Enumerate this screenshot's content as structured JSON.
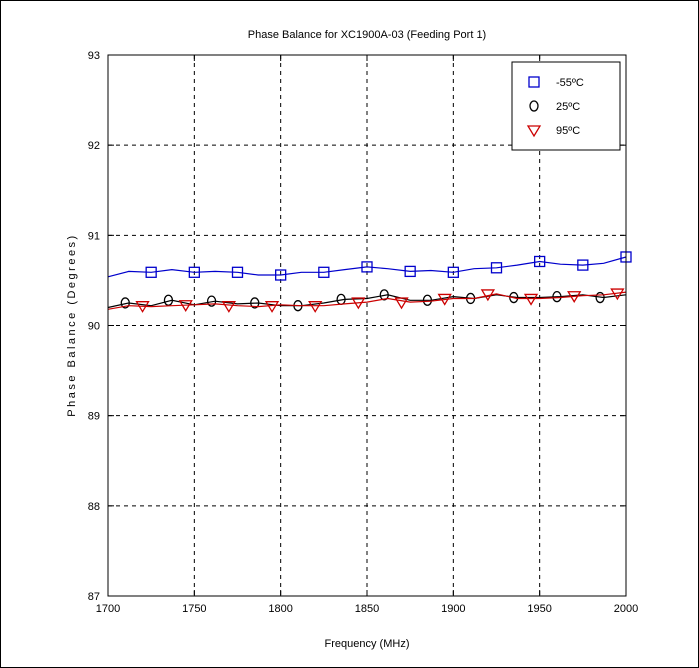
{
  "chart_data": {
    "type": "line",
    "title": "Phase Balance for XC1900A-03 (Feeding Port 1)",
    "xlabel": "Frequency (MHz)",
    "ylabel": "Phase Balance (Degrees)",
    "xlim": [
      1700,
      2000
    ],
    "ylim": [
      87,
      93
    ],
    "xticks": [
      1700,
      1750,
      1800,
      1850,
      1900,
      1950,
      2000
    ],
    "yticks": [
      87,
      88,
      89,
      90,
      91,
      92,
      93
    ],
    "grid": true,
    "legend_position": "top-right",
    "series": [
      {
        "name": "-55ºC",
        "color": "#0000cc",
        "marker": "square",
        "x": [
          1700,
          1712,
          1725,
          1737,
          1750,
          1762,
          1775,
          1787,
          1800,
          1812,
          1825,
          1837,
          1850,
          1862,
          1875,
          1887,
          1900,
          1912,
          1925,
          1937,
          1950,
          1962,
          1975,
          1987,
          2000
        ],
        "y": [
          90.54,
          90.6,
          90.59,
          90.62,
          90.59,
          90.6,
          90.59,
          90.56,
          90.56,
          90.59,
          90.59,
          90.62,
          90.65,
          90.63,
          90.6,
          90.61,
          90.59,
          90.63,
          90.64,
          90.67,
          90.71,
          90.68,
          90.67,
          90.69,
          90.76
        ],
        "marker_x": [
          1725,
          1750,
          1775,
          1800,
          1825,
          1850,
          1875,
          1900,
          1925,
          1950,
          1975,
          2000
        ],
        "marker_y": [
          90.59,
          90.59,
          90.59,
          90.56,
          90.59,
          90.65,
          90.6,
          90.59,
          90.64,
          90.71,
          90.67,
          90.76
        ]
      },
      {
        "name": "25ºC",
        "color": "#000000",
        "marker": "circle",
        "x": [
          1700,
          1712,
          1725,
          1737,
          1750,
          1762,
          1775,
          1787,
          1800,
          1812,
          1825,
          1837,
          1850,
          1862,
          1875,
          1887,
          1900,
          1912,
          1925,
          1937,
          1950,
          1962,
          1975,
          1987,
          2000
        ],
        "y": [
          90.2,
          90.25,
          90.22,
          90.28,
          90.23,
          90.27,
          90.24,
          90.25,
          90.22,
          90.22,
          90.25,
          90.29,
          90.3,
          90.34,
          90.28,
          90.28,
          90.32,
          90.3,
          90.34,
          90.31,
          90.31,
          90.32,
          90.34,
          90.31,
          90.34
        ],
        "marker_x": [
          1710,
          1735,
          1760,
          1785,
          1810,
          1835,
          1860,
          1885,
          1910,
          1935,
          1960,
          1985
        ],
        "marker_y": [
          90.25,
          90.28,
          90.27,
          90.25,
          90.22,
          90.29,
          90.34,
          90.28,
          90.3,
          90.31,
          90.32,
          90.31
        ]
      },
      {
        "name": "95ºC",
        "color": "#cc0000",
        "marker": "triangle-down",
        "x": [
          1700,
          1712,
          1725,
          1737,
          1750,
          1762,
          1775,
          1787,
          1800,
          1812,
          1825,
          1837,
          1850,
          1862,
          1875,
          1887,
          1900,
          1912,
          1925,
          1937,
          1950,
          1962,
          1975,
          1987,
          2000
        ],
        "y": [
          90.18,
          90.22,
          90.21,
          90.22,
          90.23,
          90.24,
          90.22,
          90.21,
          90.23,
          90.22,
          90.22,
          90.24,
          90.26,
          90.3,
          90.26,
          90.27,
          90.3,
          90.3,
          90.35,
          90.3,
          90.3,
          90.31,
          90.33,
          90.34,
          90.37
        ],
        "marker_x": [
          1720,
          1745,
          1770,
          1795,
          1820,
          1845,
          1870,
          1895,
          1920,
          1945,
          1970,
          1995
        ],
        "marker_y": [
          90.22,
          90.23,
          90.22,
          90.22,
          90.22,
          90.26,
          90.26,
          90.3,
          90.35,
          90.3,
          90.33,
          90.36
        ]
      }
    ]
  }
}
